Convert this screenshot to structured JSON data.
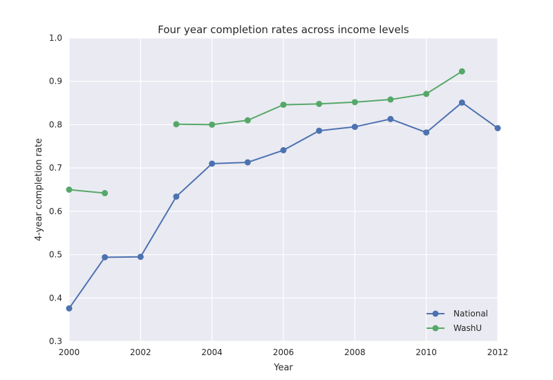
{
  "chart_data": {
    "type": "line",
    "title": "Four year completion rates across income levels",
    "xlabel": "Year",
    "ylabel": "4-year completion rate",
    "xlim": [
      2000,
      2012
    ],
    "ylim": [
      0.3,
      1.0
    ],
    "xticks": [
      2000,
      2002,
      2004,
      2006,
      2008,
      2010,
      2012
    ],
    "yticks": [
      0.3,
      0.4,
      0.5,
      0.6,
      0.7,
      0.8,
      0.9,
      1.0
    ],
    "grid": true,
    "legend_position": "bottom-right",
    "series": [
      {
        "name": "National",
        "color": "#4c72b0",
        "points": [
          [
            2000,
            0.376
          ],
          [
            2001,
            0.494
          ],
          [
            2002,
            0.495
          ],
          [
            2003,
            0.634
          ],
          [
            2004,
            0.71
          ],
          [
            2005,
            0.713
          ],
          [
            2006,
            0.741
          ],
          [
            2007,
            0.786
          ],
          [
            2008,
            0.795
          ],
          [
            2009,
            0.813
          ],
          [
            2010,
            0.782
          ],
          [
            2011,
            0.851
          ],
          [
            2012,
            0.792
          ]
        ]
      },
      {
        "name": "WashU",
        "color": "#55a868",
        "points": [
          [
            2000,
            0.65
          ],
          [
            2001,
            0.642
          ],
          [
            2002,
            null
          ],
          [
            2003,
            0.801
          ],
          [
            2004,
            0.8
          ],
          [
            2005,
            0.81
          ],
          [
            2006,
            0.846
          ],
          [
            2007,
            0.848
          ],
          [
            2008,
            0.852
          ],
          [
            2009,
            0.858
          ],
          [
            2010,
            0.871
          ],
          [
            2011,
            0.923
          ]
        ]
      }
    ]
  }
}
